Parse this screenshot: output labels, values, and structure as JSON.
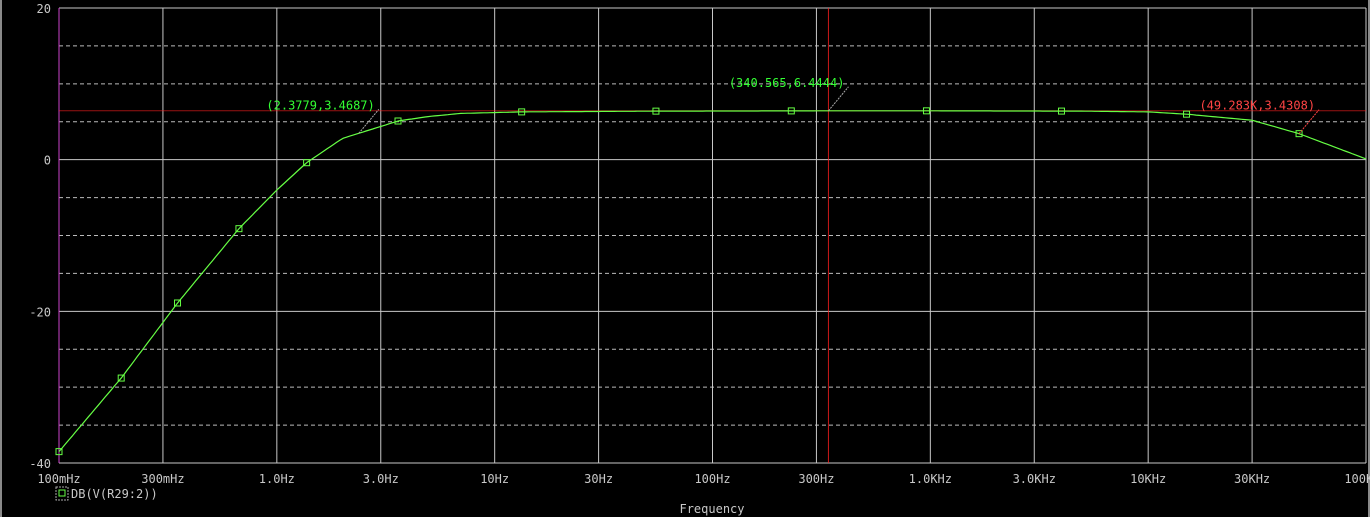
{
  "chart_data": {
    "type": "line",
    "title": "",
    "xlabel": "Frequency",
    "ylabel": "",
    "x_scale": "log",
    "xlim": [
      0.1,
      100000
    ],
    "ylim": [
      -40,
      20
    ],
    "grid": true,
    "x_ticks": [
      {
        "value": 0.1,
        "label": "100mHz"
      },
      {
        "value": 0.3,
        "label": "300mHz"
      },
      {
        "value": 1,
        "label": "1.0Hz"
      },
      {
        "value": 3,
        "label": "3.0Hz"
      },
      {
        "value": 10,
        "label": "10Hz"
      },
      {
        "value": 30,
        "label": "30Hz"
      },
      {
        "value": 100,
        "label": "100Hz"
      },
      {
        "value": 300,
        "label": "300Hz"
      },
      {
        "value": 1000,
        "label": "1.0KHz"
      },
      {
        "value": 3000,
        "label": "3.0KHz"
      },
      {
        "value": 10000,
        "label": "10KHz"
      },
      {
        "value": 30000,
        "label": "30KHz"
      },
      {
        "value": 100000,
        "label": "100KHz"
      }
    ],
    "y_ticks": [
      {
        "value": 20,
        "label": "20"
      },
      {
        "value": 0,
        "label": "0"
      },
      {
        "value": -20,
        "label": "-20"
      },
      {
        "value": -40,
        "label": "-40"
      }
    ],
    "y_minor_grid": [
      15,
      10,
      5,
      -5,
      -10,
      -15,
      -25,
      -30,
      -35
    ],
    "series": [
      {
        "name": "DB(V(R29:2))",
        "color": "#66ff44",
        "x": [
          0.1,
          0.193,
          0.35,
          0.67,
          1.0,
          1.37,
          2.0,
          2.378,
          3.6,
          5,
          7,
          13.3,
          55,
          340.565,
          1000,
          5000,
          10000,
          15000,
          30000,
          49283,
          100000
        ],
        "y": [
          -38.5,
          -28.8,
          -18.9,
          -9.1,
          -4.0,
          -0.4,
          2.8,
          3.47,
          5.1,
          5.7,
          6.1,
          6.3,
          6.4,
          6.44,
          6.44,
          6.4,
          6.3,
          6.0,
          5.2,
          3.43,
          0.1
        ],
        "markers_x": [
          0.1,
          0.193,
          0.35,
          0.67,
          1.37,
          3.6,
          13.3,
          55,
          230,
          960,
          4000,
          15000,
          49283
        ]
      }
    ],
    "legend": {
      "placement": "bottom-left",
      "entries": [
        "DB(V(R29:2))"
      ]
    },
    "cursors": {
      "color": "#ff2020",
      "x": 340.565,
      "y": 6.4444
    },
    "annotations": [
      {
        "text": "(2.3779,3.4687)",
        "x": 2.3779,
        "y": 3.4687,
        "color": "#33ff33"
      },
      {
        "text": "(340.565,6.4444)",
        "x": 340.565,
        "y": 6.4444,
        "color": "#33ff33"
      },
      {
        "text": "(49.283K,3.4308)",
        "x": 49283,
        "y": 3.4308,
        "color": "#ff4444"
      }
    ]
  }
}
